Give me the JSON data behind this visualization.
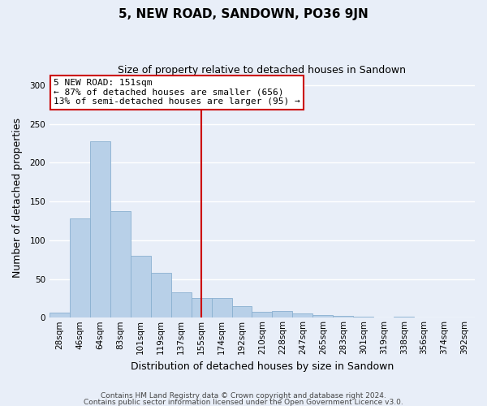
{
  "title": "5, NEW ROAD, SANDOWN, PO36 9JN",
  "subtitle": "Size of property relative to detached houses in Sandown",
  "xlabel": "Distribution of detached houses by size in Sandown",
  "ylabel": "Number of detached properties",
  "bar_labels": [
    "28sqm",
    "46sqm",
    "64sqm",
    "83sqm",
    "101sqm",
    "119sqm",
    "137sqm",
    "155sqm",
    "174sqm",
    "192sqm",
    "210sqm",
    "228sqm",
    "247sqm",
    "265sqm",
    "283sqm",
    "301sqm",
    "319sqm",
    "338sqm",
    "356sqm",
    "374sqm",
    "392sqm"
  ],
  "bar_values": [
    7,
    128,
    228,
    138,
    80,
    58,
    33,
    25,
    25,
    15,
    8,
    9,
    5,
    3,
    2,
    1,
    0,
    1,
    0,
    0,
    0
  ],
  "bar_color": "#b8d0e8",
  "bar_edgecolor": "#8ab0d0",
  "vline_x": 7,
  "vline_color": "#cc0000",
  "annotation_title": "5 NEW ROAD: 151sqm",
  "annotation_line1": "← 87% of detached houses are smaller (656)",
  "annotation_line2": "13% of semi-detached houses are larger (95) →",
  "annotation_box_edgecolor": "#cc0000",
  "ylim": [
    0,
    310
  ],
  "yticks": [
    0,
    50,
    100,
    150,
    200,
    250,
    300
  ],
  "footer1": "Contains HM Land Registry data © Crown copyright and database right 2024.",
  "footer2": "Contains public sector information licensed under the Open Government Licence v3.0.",
  "bg_color": "#e8eef8",
  "plot_bg_color": "#e8eef8",
  "grid_color": "#ffffff",
  "title_fontsize": 11,
  "subtitle_fontsize": 9,
  "annotation_fontsize": 8,
  "axis_label_fontsize": 9,
  "tick_fontsize": 7.5,
  "footer_fontsize": 6.5
}
